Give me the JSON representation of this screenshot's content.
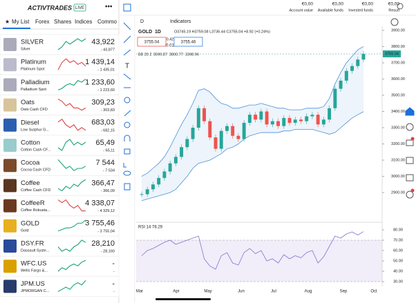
{
  "header": {
    "brand": "ACTIVTRADES",
    "badge": "LIVE"
  },
  "tabs": [
    "My List",
    "Forex",
    "Shares",
    "Indices",
    "Commo"
  ],
  "watchlist": [
    {
      "name": "SILVER",
      "sub": "Silver",
      "price": "43,922",
      "sub_price": "- 43,877",
      "color": "#1aa37a",
      "spark": [
        40,
        41,
        43,
        42,
        43,
        44,
        43,
        44
      ]
    },
    {
      "name": "Platinum",
      "sub": "Platinum Spot",
      "price": "1 439,14",
      "sub_price": "- 1 435,01",
      "color": "#e0413d",
      "spark": [
        40,
        44,
        46,
        44,
        45,
        43,
        44,
        42
      ]
    },
    {
      "name": "Palladium",
      "sub": "Palladium Spot",
      "price": "1 233,60",
      "sub_price": "- 1 223,60",
      "color": "#1aa37a",
      "spark": [
        40,
        41,
        43,
        44,
        43,
        46,
        45,
        47
      ]
    },
    {
      "name": "Oats",
      "sub": "Oats Cash CFD",
      "price": "309,23",
      "sub_price": "- 303,83",
      "color": "#e0413d",
      "spark": [
        46,
        45,
        43,
        44,
        42,
        42,
        41,
        42
      ]
    },
    {
      "name": "Diesel",
      "sub": "Low Sulphur G...",
      "price": "683,03",
      "sub_price": "- 682,15",
      "color": "#e0413d",
      "spark": [
        45,
        46,
        44,
        43,
        44,
        42,
        43,
        42
      ]
    },
    {
      "name": "Cotton",
      "sub": "Cotton Cash CF...",
      "price": "65,49",
      "sub_price": "- 65,11",
      "color": "#1aa37a",
      "spark": [
        43,
        42,
        45,
        46,
        44,
        45,
        44,
        45
      ]
    },
    {
      "name": "Cocoa",
      "sub": "Cocoa Cash CFD",
      "price": "7 544",
      "sub_price": "- 7 534",
      "color": "#1aa37a",
      "spark": [
        46,
        44,
        42,
        43,
        41,
        42,
        42,
        43
      ]
    },
    {
      "name": "Coffee",
      "sub": "Coffee Cash CFD",
      "price": "366,47",
      "sub_price": "- 366,09",
      "color": "#1aa37a",
      "spark": [
        42,
        41,
        43,
        42,
        44,
        43,
        45,
        46
      ]
    },
    {
      "name": "CoffeeR",
      "sub": "Coffee Robusta...",
      "price": "4 338,07",
      "sub_price": "- 4 329,12",
      "color": "#e0413d",
      "spark": [
        46,
        45,
        46,
        44,
        43,
        44,
        42,
        42
      ]
    },
    {
      "name": "GOLD",
      "sub": "Gold",
      "price": "3 755,46",
      "sub_price": "- 3 755,04",
      "color": "#1aa37a",
      "spark": [
        40,
        41,
        42,
        42,
        43,
        45,
        45,
        47
      ]
    },
    {
      "name": "DSY.FR",
      "sub": "Dassault Syste...",
      "price": "28,210",
      "sub_price": "- 28,160",
      "color": "#1aa37a",
      "spark": [
        43,
        41,
        42,
        41,
        43,
        44,
        46,
        45
      ]
    },
    {
      "name": "WFC.US",
      "sub": "Wells Fargo &...",
      "price": "-",
      "sub_price": "-",
      "color": "#1aa37a",
      "spark": [
        40,
        42,
        41,
        43,
        44,
        43,
        45,
        46
      ]
    },
    {
      "name": "JPM.US",
      "sub": "JPMORGAN C...",
      "price": "-",
      "sub_price": "-",
      "color": "#1aa37a",
      "spark": [
        41,
        42,
        43,
        42,
        44,
        45,
        44,
        46
      ]
    }
  ],
  "account": [
    {
      "value": "€0,00",
      "label": "Account value"
    },
    {
      "value": "€0,00",
      "label": "Available funds"
    },
    {
      "value": "€0,00",
      "label": "Invested funds"
    },
    {
      "value": "€0,00",
      "label": "Result"
    }
  ],
  "toolbar": {
    "interval": "D",
    "indicators": "Indicators"
  },
  "symbol": {
    "name": "GOLD",
    "timeframe": "1D",
    "ohlc": "O3745.19 H3759.08 L3736.44 C3755.04 +8.92 (+0.24%)",
    "sell": "3755.04",
    "spread": "0.42",
    "qty": "0.01",
    "buy": "3755.46",
    "bb": "BB 20 2",
    "bb_mid": "3599.87",
    "bb_up": "3800.77",
    "bb_low": "3398.96"
  },
  "chart_data": [
    {
      "type": "candlestick",
      "x_labels": [
        "Mar",
        "Apr",
        "May",
        "Jun",
        "Jul",
        "Aug",
        "Sep",
        "Oct"
      ],
      "close": [
        2890,
        2920,
        2950,
        2990,
        3030,
        3080,
        3120,
        3180,
        3230,
        3300,
        3420,
        3340,
        3240,
        3170,
        3280,
        3310,
        3250,
        3230,
        3330,
        3380,
        3350,
        3400,
        3320,
        3340,
        3310,
        3360,
        3330,
        3350,
        3340,
        3370,
        3380,
        3320,
        3350,
        3420,
        3540,
        3590,
        3650,
        3680,
        3720,
        3755.04
      ],
      "upper": [
        3000,
        3020,
        3050,
        3080,
        3120,
        3180,
        3250,
        3320,
        3380,
        3450,
        3530,
        3540,
        3520,
        3480,
        3450,
        3440,
        3420,
        3420,
        3430,
        3440,
        3440,
        3450,
        3440,
        3430,
        3420,
        3420,
        3410,
        3410,
        3410,
        3420,
        3420,
        3420,
        3430,
        3480,
        3570,
        3640,
        3700,
        3740,
        3780,
        3800.77
      ],
      "lower": [
        2850,
        2860,
        2870,
        2880,
        2890,
        2900,
        2920,
        2960,
        3000,
        3050,
        3080,
        3090,
        3100,
        3120,
        3140,
        3170,
        3180,
        3200,
        3230,
        3250,
        3260,
        3270,
        3270,
        3270,
        3270,
        3280,
        3280,
        3290,
        3290,
        3290,
        3290,
        3280,
        3270,
        3260,
        3270,
        3300,
        3330,
        3360,
        3380,
        3398.96
      ],
      "ylim": [
        2900,
        3900
      ],
      "yticks": [
        {
          "value": 3900,
          "label": "3900.00"
        },
        {
          "value": 3800,
          "label": "3800.00"
        },
        {
          "value": 3700,
          "label": "3700.00"
        },
        {
          "value": 3600,
          "label": "3600.00"
        },
        {
          "value": 3500,
          "label": "3500.00"
        },
        {
          "value": 3400,
          "label": "3400.00"
        },
        {
          "value": 3300,
          "label": "3300.00"
        },
        {
          "value": 3200,
          "label": "3200.00"
        },
        {
          "value": 3100,
          "label": "3100.00"
        },
        {
          "value": 3000,
          "label": "3000.00"
        },
        {
          "value": 2900,
          "label": "2900.00"
        }
      ],
      "last": {
        "value": 3755.04,
        "label": "3755.04"
      },
      "up_color": "#26a69a",
      "down_color": "#ef5350",
      "band_color": "#4a90d9",
      "mid_color": "#f08c3a"
    },
    {
      "type": "line",
      "title": "RSI 14",
      "last": "78.29",
      "values": [
        55,
        60,
        62,
        65,
        68,
        70,
        66,
        68,
        70,
        72,
        74,
        52,
        45,
        42,
        55,
        58,
        48,
        46,
        58,
        62,
        57,
        60,
        50,
        52,
        48,
        56,
        52,
        55,
        53,
        58,
        60,
        48,
        54,
        64,
        74,
        72,
        76,
        78,
        75,
        78.29
      ],
      "color": "#8a6fd1",
      "ylim": [
        30,
        80
      ],
      "yticks": [
        {
          "value": 80,
          "label": "80.00"
        },
        {
          "value": 70,
          "label": "70.00"
        },
        {
          "value": 60,
          "label": "60.00"
        },
        {
          "value": 50,
          "label": "50.00"
        },
        {
          "value": 40,
          "label": "40.00"
        },
        {
          "value": 30,
          "label": "30.00"
        }
      ]
    }
  ]
}
